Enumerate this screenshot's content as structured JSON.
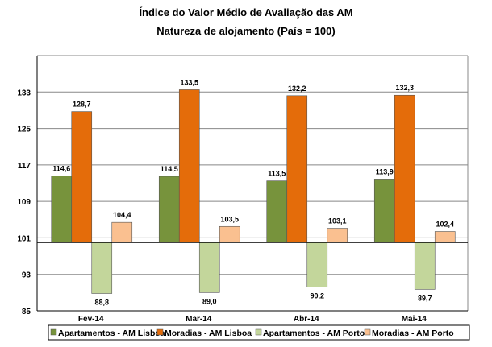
{
  "chart_data": {
    "type": "bar",
    "title": "Índice do Valor Médio de Avaliação das AM",
    "subtitle": "Natureza de alojamento (País = 100)",
    "categories": [
      "Fev-14",
      "Mar-14",
      "Abr-14",
      "Mai-14"
    ],
    "baseline": 100,
    "ylim": [
      85,
      141
    ],
    "yticks": [
      85,
      93,
      101,
      109,
      117,
      125,
      133
    ],
    "grid": true,
    "legend_position": "bottom",
    "series": [
      {
        "name": "Apartamentos - AM Lisboa",
        "color": "#77933C",
        "values": [
          114.6,
          114.5,
          113.5,
          113.9
        ],
        "labels": [
          "114,6",
          "114,5",
          "113,5",
          "113,9"
        ]
      },
      {
        "name": "Moradias - AM Lisboa",
        "color": "#E46C0A",
        "values": [
          128.7,
          133.5,
          132.2,
          132.3
        ],
        "labels": [
          "128,7",
          "133,5",
          "132,2",
          "132,3"
        ]
      },
      {
        "name": "Apartamentos - AM Porto",
        "color": "#C3D69B",
        "values": [
          88.8,
          89.0,
          90.2,
          89.7
        ],
        "labels": [
          "88,8",
          "89,0",
          "90,2",
          "89,7"
        ]
      },
      {
        "name": "Moradias - AM Porto",
        "color": "#FAC090",
        "values": [
          104.4,
          103.5,
          103.1,
          102.4
        ],
        "labels": [
          "104,4",
          "103,5",
          "103,1",
          "102,4"
        ]
      }
    ]
  }
}
